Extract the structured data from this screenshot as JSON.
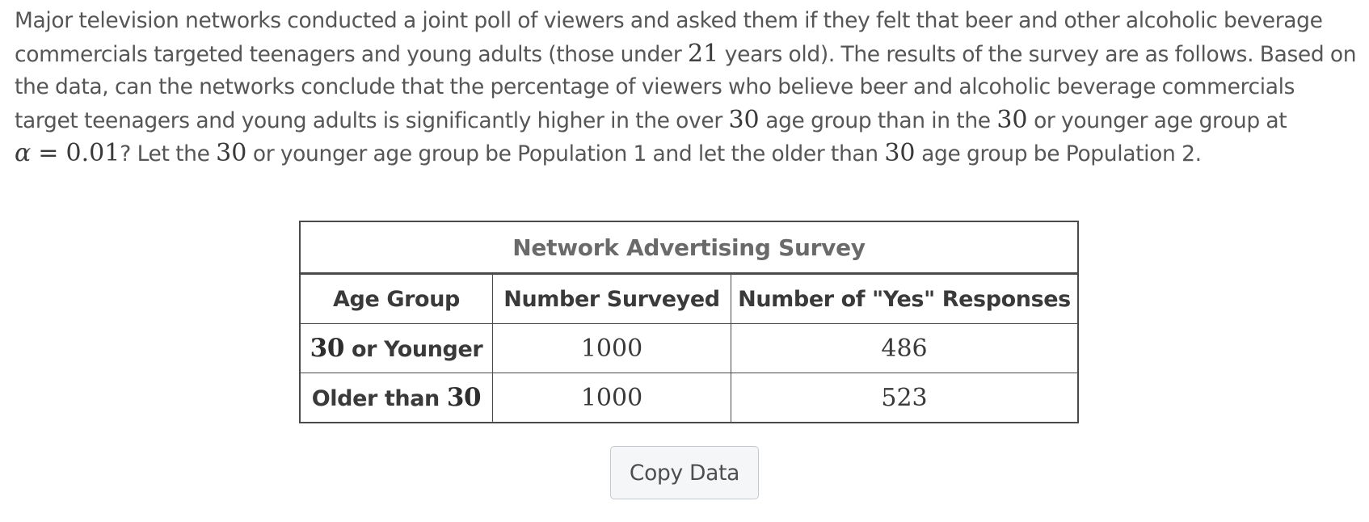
{
  "problem": {
    "t1": "Major television networks conducted a joint poll of viewers and asked them if they felt that beer and other alcoholic beverage commercials targeted teenagers and young adults (those under ",
    "m1": "21",
    "t2": " years old). The results of the survey are as follows. Based on the data, can the networks conclude that the percentage of viewers who believe beer and alcoholic beverage commercials target teenagers and young adults is significantly higher in the over ",
    "m2": "30",
    "t3": " age group than in the ",
    "m3": "30",
    "t4": " or younger age group at ",
    "alpha_symbol": "α",
    "equals": " = ",
    "alpha_value": "0.01",
    "t5": "? Let the ",
    "m4": "30",
    "t6": " or younger age group be Population 1 and let the older than ",
    "m5": "30",
    "t7": " age group be Population 2."
  },
  "table": {
    "caption": "Network Advertising Survey",
    "headers": [
      "Age Group",
      "Number Surveyed",
      "Number of \"Yes\" Responses"
    ],
    "rows": [
      {
        "label_num": "30",
        "label_text": " or Younger",
        "surveyed": "1000",
        "yes": "486"
      },
      {
        "label_text": "Older than ",
        "label_num": "30",
        "surveyed": "1000",
        "yes": "523"
      }
    ]
  },
  "copy_button": {
    "label": "Copy Data"
  }
}
